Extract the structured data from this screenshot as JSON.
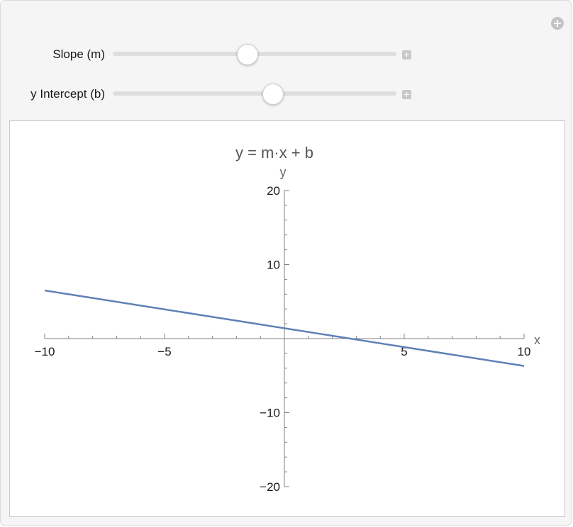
{
  "controls": {
    "slope": {
      "label": "Slope (m)",
      "value_fraction": 0.475
    },
    "intercept": {
      "label": "y Intercept (b)",
      "value_fraction": 0.565
    }
  },
  "icons": {
    "add_control": "plus-circle-icon",
    "expand": "plus-square-icon"
  },
  "chart_data": {
    "type": "line",
    "title": "y = m·x + b",
    "xlabel": "x",
    "ylabel": "y",
    "xlim": [
      -10,
      10
    ],
    "ylim": [
      -20,
      20
    ],
    "x_ticks": [
      -10,
      -5,
      5,
      10
    ],
    "x_tick_labels": [
      "−10",
      "−5",
      "5",
      "10"
    ],
    "y_ticks": [
      -20,
      -10,
      10,
      20
    ],
    "y_tick_labels": [
      "−20",
      "−10",
      "10",
      "20"
    ],
    "series": [
      {
        "x": [
          -10,
          10
        ],
        "y": [
          6.5,
          -3.7
        ],
        "color": "#5e81b5"
      }
    ],
    "grid": false
  }
}
